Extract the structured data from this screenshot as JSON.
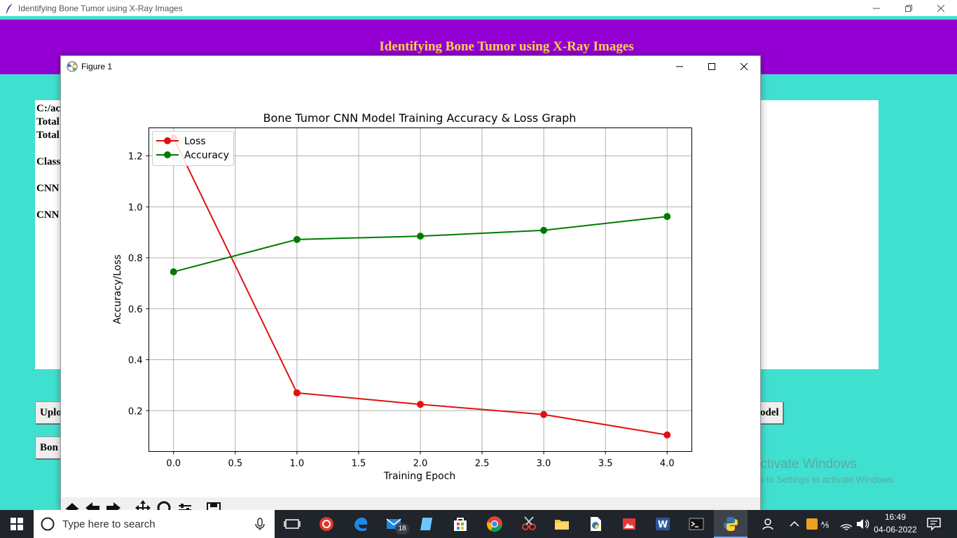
{
  "app": {
    "window_title": "Identifying Bone Tumor using X-Ray Images",
    "header_title": "Identifying Bone Tumor using X-Ray Images",
    "text_lines": [
      "C:/ac",
      "Total",
      "Total",
      "Class",
      "CNN",
      "CNN"
    ],
    "buttons": {
      "upload": "Uplo",
      "bone": "Bon",
      "model": "odel"
    }
  },
  "figure": {
    "window_title": "Figure 1"
  },
  "chart_data": {
    "type": "line",
    "title": "Bone Tumor CNN Model Training Accuracy & Loss Graph",
    "xlabel": "Training Epoch",
    "ylabel": "Accuracy/Loss",
    "x": [
      0,
      1,
      2,
      3,
      4
    ],
    "series": [
      {
        "name": "Loss",
        "color": "#E01010",
        "values": [
          1.27,
          0.27,
          0.225,
          0.185,
          0.105
        ]
      },
      {
        "name": "Accuracy",
        "color": "#007A00",
        "values": [
          0.745,
          0.872,
          0.885,
          0.908,
          0.962
        ]
      }
    ],
    "xticks": [
      "0.0",
      "0.5",
      "1.0",
      "1.5",
      "2.0",
      "2.5",
      "3.0",
      "3.5",
      "4.0"
    ],
    "yticks": [
      "0.2",
      "0.4",
      "0.6",
      "0.8",
      "1.0",
      "1.2"
    ],
    "xlim": [
      -0.2,
      4.2
    ],
    "ylim": [
      0.04,
      1.31
    ],
    "grid": true,
    "legend_position": "upper-left"
  },
  "watermark": {
    "line1": "Activate Windows",
    "line2": "Go to Settings to activate Windows."
  },
  "taskbar": {
    "search_placeholder": "Type here to search",
    "mail_badge": "18",
    "time": "16:49",
    "date": "04-06-2022"
  },
  "colors": {
    "teal": "#40E0D0",
    "purple": "#9400D3",
    "header_text": "#FFD24A"
  }
}
